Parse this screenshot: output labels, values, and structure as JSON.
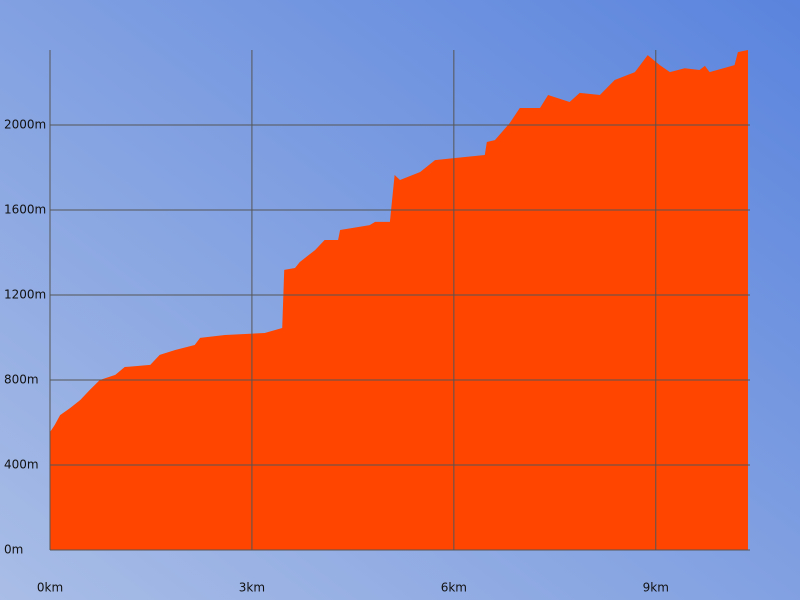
{
  "chart_data": {
    "type": "area",
    "color": "#ff4500",
    "grid": true,
    "x": [
      0,
      0.07,
      0.15,
      0.3,
      0.45,
      0.59,
      0.74,
      0.97,
      1.11,
      1.49,
      1.63,
      1.86,
      2.15,
      2.23,
      2.6,
      3.19,
      3.45,
      3.48,
      3.64,
      3.71,
      3.94,
      4.08,
      4.28,
      4.31,
      4.75,
      4.83,
      5.05,
      5.12,
      5.2,
      5.5,
      5.72,
      6.02,
      6.46,
      6.49,
      6.61,
      6.83,
      6.98,
      7.28,
      7.4,
      7.72,
      7.87,
      8.17,
      8.39,
      8.69,
      8.88,
      9.06,
      9.21,
      9.43,
      9.65,
      9.73,
      9.8,
      10.17,
      10.22,
      10.37
    ],
    "values": [
      555,
      588,
      635,
      668,
      706,
      753,
      800,
      824,
      861,
      871,
      918,
      941,
      965,
      998,
      1012,
      1021,
      1045,
      1318,
      1327,
      1355,
      1412,
      1459,
      1459,
      1506,
      1529,
      1544,
      1544,
      1765,
      1741,
      1779,
      1835,
      1845,
      1859,
      1920,
      1929,
      2009,
      2080,
      2080,
      2141,
      2108,
      2151,
      2141,
      2212,
      2249,
      2329,
      2282,
      2249,
      2267,
      2259,
      2278,
      2249,
      2282,
      2343,
      2353
    ],
    "xlim": [
      0,
      10.4
    ],
    "ylim": [
      0,
      2353
    ],
    "xticks": [
      {
        "value": 0,
        "label": "0km"
      },
      {
        "value": 3,
        "label": "3km"
      },
      {
        "value": 6,
        "label": "6km"
      },
      {
        "value": 9,
        "label": "9km"
      }
    ],
    "yticks": [
      {
        "value": 0,
        "label": "0m"
      },
      {
        "value": 400,
        "label": "400m"
      },
      {
        "value": 800,
        "label": "800m"
      },
      {
        "value": 1200,
        "label": "1200m"
      },
      {
        "value": 1600,
        "label": "1600m"
      },
      {
        "value": 2000,
        "label": "2000m"
      }
    ]
  }
}
